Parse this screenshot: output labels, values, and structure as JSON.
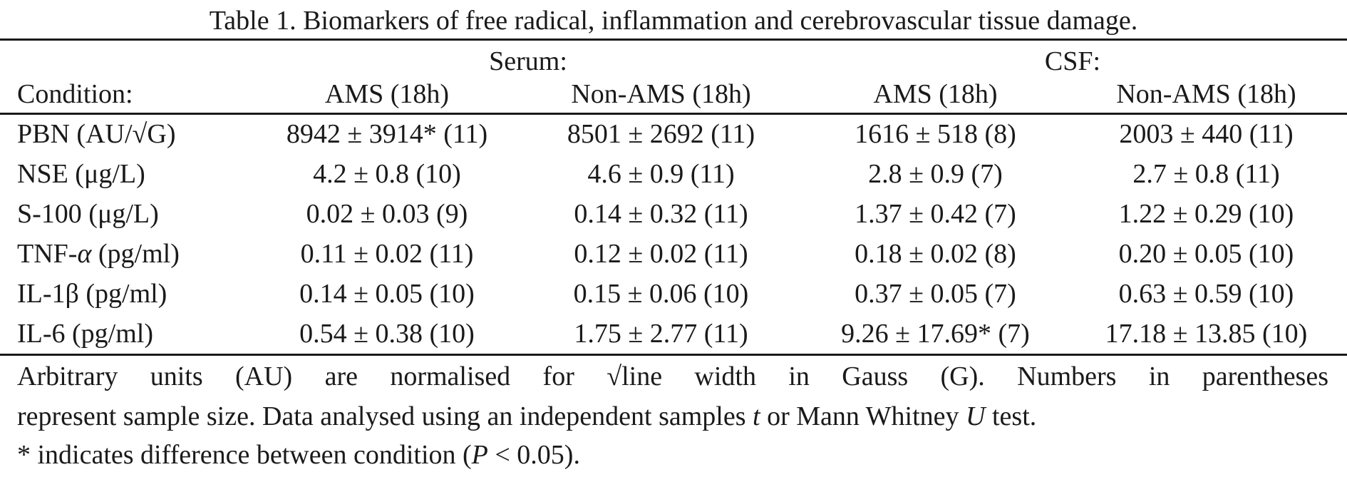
{
  "table": {
    "title": "Table 1.  Biomarkers of free radical, inflammation and cerebrovascular tissue damage.",
    "group_headers": {
      "serum": "Serum:",
      "csf": "CSF:"
    },
    "columns": [
      "Condition:",
      "AMS (18h)",
      "Non-AMS (18h)",
      "AMS (18h)",
      "Non-AMS (18h)"
    ],
    "rows": [
      {
        "label": "PBN (AU/√G)",
        "values": [
          "8942 ± 3914* (11)",
          "8501 ± 2692 (11)",
          "1616 ± 518 (8)",
          "2003 ± 440 (11)"
        ]
      },
      {
        "label": "NSE (μg/L)",
        "values": [
          "4.2 ± 0.8 (10)",
          "4.6 ± 0.9 (11)",
          "2.8 ± 0.9 (7)",
          "2.7 ± 0.8 (11)"
        ]
      },
      {
        "label": "S-100 (μg/L)",
        "values": [
          "0.02 ± 0.03 (9)",
          "0.14 ± 0.32 (11)",
          "1.37 ± 0.42 (7)",
          "1.22 ± 0.29 (10)"
        ]
      },
      {
        "label_prefix": "TNF-",
        "label_symbol": "α",
        "label_suffix": " (pg/ml)",
        "values": [
          "0.11 ± 0.02 (11)",
          "0.12 ± 0.02 (11)",
          "0.18 ± 0.02 (8)",
          "0.20 ± 0.05 (10)"
        ]
      },
      {
        "label": "IL-1β (pg/ml)",
        "values": [
          "0.14 ± 0.05 (10)",
          "0.15 ± 0.06 (10)",
          "0.37 ± 0.05 (7)",
          "0.63 ± 0.59 (10)"
        ]
      },
      {
        "label": "IL-6 (pg/ml)",
        "values": [
          "0.54 ± 0.38 (10)",
          "1.75 ± 2.77 (11)",
          "9.26 ± 17.69* (7)",
          "17.18 ± 13.85 (10)"
        ]
      }
    ]
  },
  "notes": {
    "line1": "Arbitrary units (AU) are normalised for √line width in Gauss (G).  Numbers in parentheses",
    "line2_a": "represent sample size.  Data analysed using an independent samples ",
    "line2_t": "t",
    "line2_b": " or Mann Whitney ",
    "line2_u": "U",
    "line2_c": " test.",
    "line3_a": "* indicates difference between condition (",
    "line3_p": "P",
    "line3_b": " < 0.05)."
  }
}
